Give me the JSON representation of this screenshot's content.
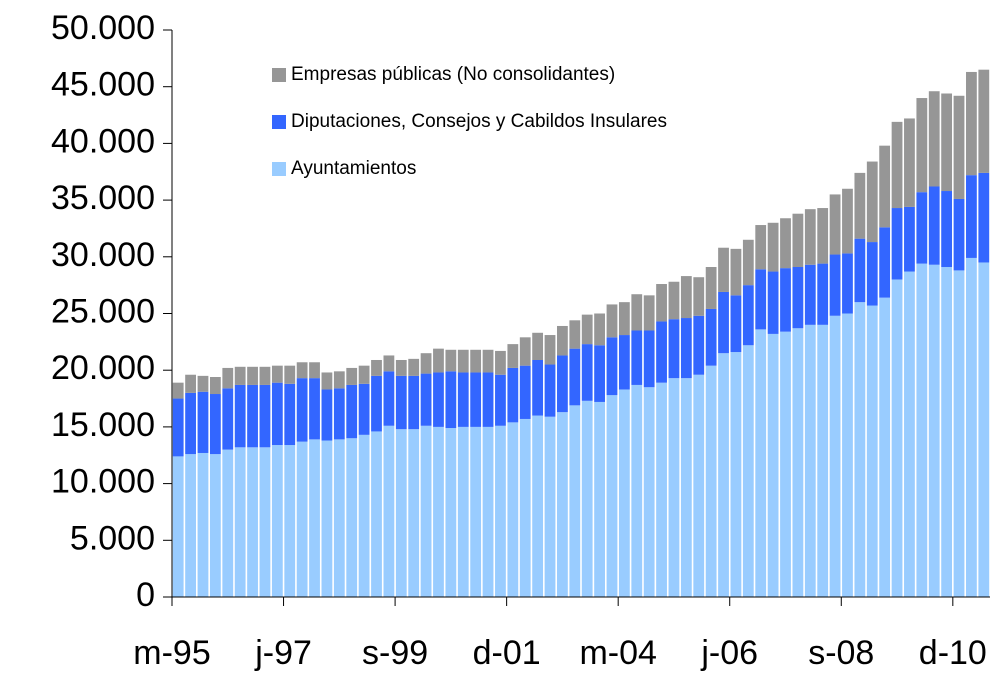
{
  "chart_data": {
    "type": "stacked-bar",
    "categories": [
      "m-95",
      null,
      null,
      null,
      null,
      null,
      null,
      null,
      null,
      "j-97",
      null,
      null,
      null,
      null,
      null,
      null,
      null,
      null,
      "s-99",
      null,
      null,
      null,
      null,
      null,
      null,
      null,
      null,
      "d-01",
      null,
      null,
      null,
      null,
      null,
      null,
      null,
      null,
      "m-04",
      null,
      null,
      null,
      null,
      null,
      null,
      null,
      null,
      "j-06",
      null,
      null,
      null,
      null,
      null,
      null,
      null,
      null,
      "s-08",
      null,
      null,
      null,
      null,
      null,
      null,
      null,
      null,
      "d-10",
      null,
      null
    ],
    "series": [
      {
        "name": "Ayuntamientos",
        "color": "#99ccff",
        "values": [
          12400,
          12600,
          12700,
          12600,
          13000,
          13200,
          13200,
          13200,
          13400,
          13400,
          13700,
          13900,
          13800,
          13900,
          14000,
          14300,
          14600,
          15100,
          14800,
          14800,
          15100,
          15000,
          14900,
          15000,
          15000,
          15000,
          15100,
          15400,
          15700,
          16000,
          15900,
          16300,
          16900,
          17300,
          17200,
          17800,
          18300,
          18700,
          18500,
          18900,
          19300,
          19300,
          19600,
          20400,
          21500,
          21600,
          22200,
          23600,
          23200,
          23400,
          23700,
          24000,
          24000,
          24800,
          25000,
          26000,
          25700,
          26400,
          28000,
          28700,
          29400,
          29300,
          29100,
          28800,
          29900,
          29500
        ]
      },
      {
        "name": "Diputaciones, Consejos y Cabildos Insulares",
        "color": "#3366ff",
        "values": [
          5100,
          5400,
          5400,
          5300,
          5400,
          5500,
          5500,
          5500,
          5500,
          5400,
          5600,
          5400,
          4500,
          4500,
          4700,
          4500,
          4900,
          4800,
          4700,
          4700,
          4600,
          4800,
          5000,
          4800,
          4800,
          4800,
          4500,
          4800,
          4700,
          4900,
          4600,
          5000,
          5000,
          5000,
          5000,
          5100,
          4800,
          4800,
          5000,
          5400,
          5200,
          5300,
          5200,
          5000,
          5400,
          5000,
          5300,
          5300,
          5500,
          5600,
          5400,
          5300,
          5400,
          5400,
          5300,
          5600,
          5600,
          6200,
          6300,
          5700,
          6300,
          6900,
          6700,
          6300,
          7300,
          7900
        ]
      },
      {
        "name": "Empresas públicas (No consolidantes)",
        "color": "#969696",
        "values": [
          1400,
          1600,
          1400,
          1500,
          1800,
          1600,
          1600,
          1600,
          1500,
          1600,
          1400,
          1400,
          1500,
          1500,
          1500,
          1600,
          1400,
          1400,
          1400,
          1500,
          1800,
          2100,
          1900,
          2000,
          2000,
          2000,
          2100,
          2100,
          2500,
          2400,
          2600,
          2600,
          2500,
          2600,
          2800,
          2900,
          2900,
          3200,
          3100,
          3300,
          3300,
          3700,
          3400,
          3700,
          3900,
          4100,
          4000,
          3900,
          4300,
          4400,
          4700,
          4900,
          4900,
          5300,
          5700,
          5800,
          7100,
          7200,
          7600,
          7800,
          8300,
          8400,
          8600,
          9100,
          9100,
          9100
        ]
      }
    ],
    "ylim": [
      0,
      50000
    ],
    "yticks": [
      0,
      {
        "value": 5000,
        "label": "5.000"
      },
      {
        "value": 10000,
        "label": "10.000"
      },
      {
        "value": 15000,
        "label": "15.000"
      },
      {
        "value": 20000,
        "label": "20.000"
      },
      {
        "value": 25000,
        "label": "25.000"
      },
      {
        "value": 30000,
        "label": "30.000"
      },
      {
        "value": 35000,
        "label": "35.000"
      },
      {
        "value": 40000,
        "label": "40.000"
      },
      {
        "value": 45000,
        "label": "45.000"
      },
      {
        "value": 50000,
        "label": "50.000"
      }
    ],
    "grid": false,
    "legend": "top-left"
  }
}
